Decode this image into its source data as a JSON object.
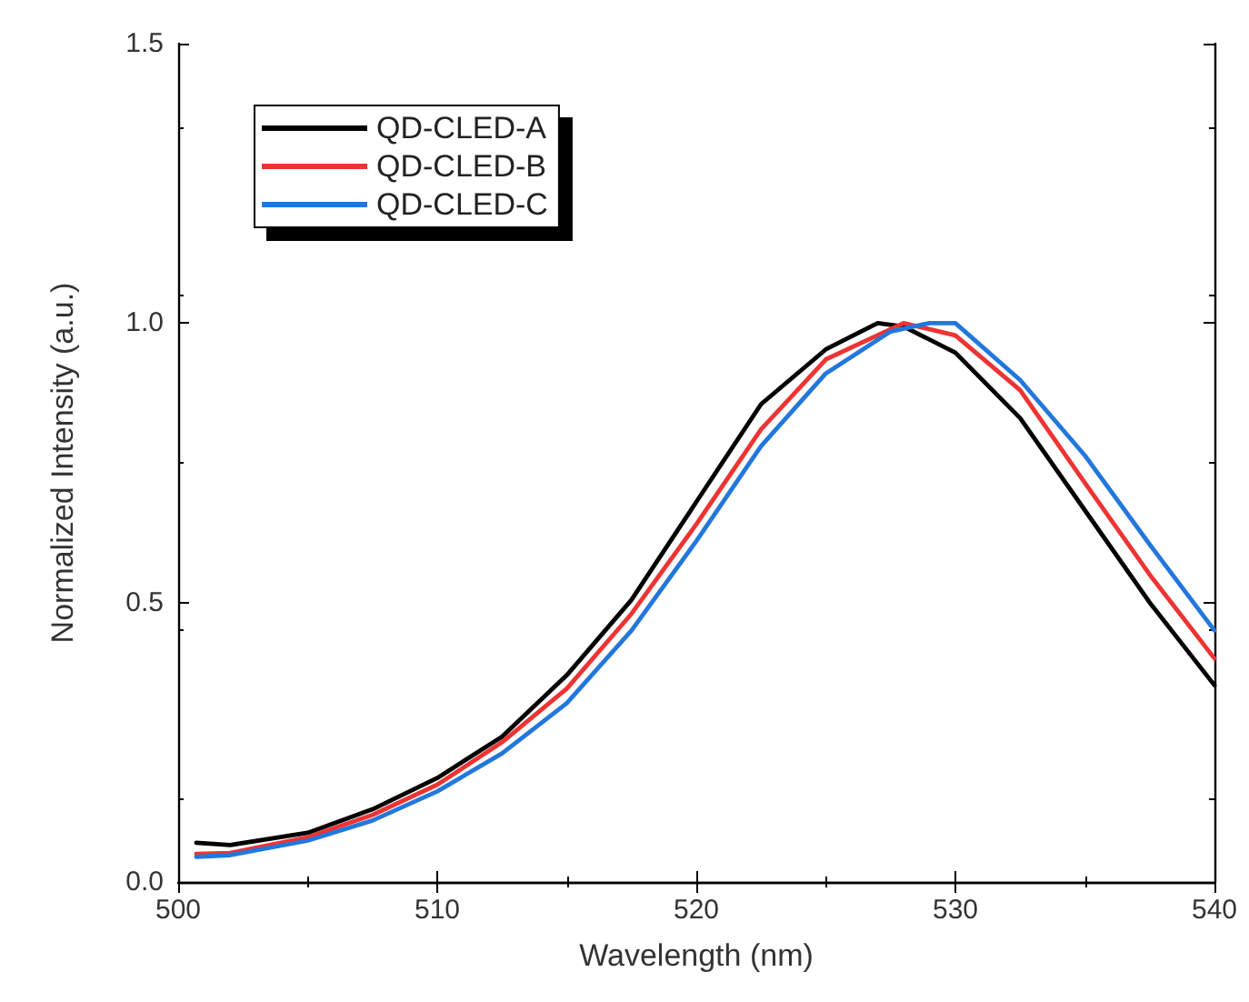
{
  "chart_data": {
    "type": "line",
    "xlabel": "Wavelength (nm)",
    "ylabel": "Normalized Intensity (a.u.)",
    "xlim": [
      500,
      540
    ],
    "ylim": [
      0,
      1.5
    ],
    "xticks": [
      500,
      510,
      520,
      530,
      540
    ],
    "yticks": [
      {
        "value": 0,
        "label": "0.0"
      },
      0.5,
      {
        "value": 1,
        "label": "1.0"
      },
      1.5
    ],
    "legend": "top left",
    "grid": false,
    "marker": "none",
    "line_style": "solid",
    "series": [
      {
        "name": "QD-CLED-A",
        "color": "#000000",
        "x": [
          500.7,
          502,
          505,
          507.5,
          510,
          512.5,
          515,
          517.5,
          520,
          522.5,
          525,
          527,
          528,
          530,
          532.5,
          535,
          537.5,
          540
        ],
        "values": [
          0.07,
          0.066,
          0.088,
          0.13,
          0.186,
          0.26,
          0.37,
          0.505,
          0.68,
          0.855,
          0.953,
          1.0,
          0.994,
          0.947,
          0.83,
          0.665,
          0.5,
          0.352
        ]
      },
      {
        "name": "QD-CLED-B",
        "color": "#ee3333",
        "x": [
          500.7,
          502,
          505,
          507.5,
          510,
          512.5,
          515,
          517.5,
          520,
          522.5,
          525,
          528,
          530,
          532.5,
          535,
          537.5,
          540
        ],
        "values": [
          0.05,
          0.052,
          0.08,
          0.12,
          0.174,
          0.25,
          0.346,
          0.48,
          0.64,
          0.81,
          0.935,
          1.0,
          0.978,
          0.88,
          0.714,
          0.55,
          0.4
        ]
      },
      {
        "name": "QD-CLED-C",
        "color": "#2277dd",
        "x": [
          500.7,
          502,
          505,
          507.5,
          510,
          512.5,
          515,
          517.5,
          520,
          522.5,
          525,
          527.5,
          529,
          530,
          532.5,
          535,
          537.5,
          540
        ],
        "values": [
          0.045,
          0.048,
          0.074,
          0.11,
          0.162,
          0.23,
          0.32,
          0.45,
          0.61,
          0.78,
          0.91,
          0.985,
          1.0,
          1.0,
          0.898,
          0.763,
          0.604,
          0.45
        ]
      }
    ]
  }
}
